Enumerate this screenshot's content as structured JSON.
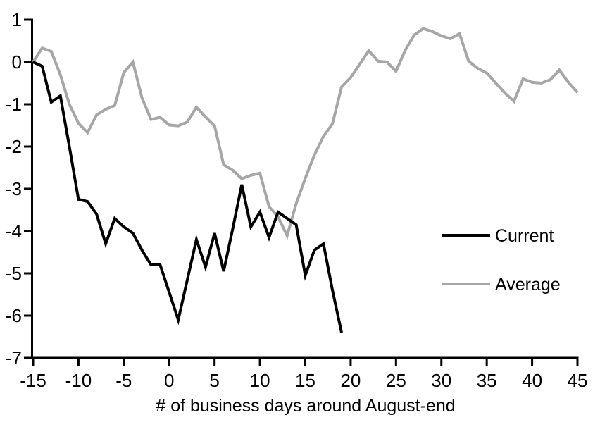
{
  "chart_data": {
    "type": "line",
    "title": "",
    "xlabel": "# of business days around August-end",
    "ylabel": "",
    "xlim": [
      -15,
      45
    ],
    "ylim": [
      -7,
      1
    ],
    "grid": false,
    "x_ticks": [
      -15,
      -10,
      -5,
      0,
      5,
      10,
      15,
      20,
      25,
      30,
      35,
      40,
      45
    ],
    "y_ticks": [
      1,
      0,
      -1,
      -2,
      -3,
      -4,
      -5,
      -6,
      -7
    ],
    "legend_position": "middle-right",
    "axis_color": "#000000",
    "series": [
      {
        "name": "Current",
        "color": "#000000",
        "x": [
          -15,
          -14,
          -13,
          -12,
          -11,
          -10,
          -9,
          -8,
          -7,
          -6,
          -5,
          -4,
          -3,
          -2,
          -1,
          0,
          1,
          2,
          3,
          4,
          5,
          6,
          7,
          8,
          9,
          10,
          11,
          12,
          13,
          14,
          15,
          16,
          17,
          18,
          19
        ],
        "values": [
          0,
          -0.1,
          -0.95,
          -0.8,
          -2.0,
          -3.25,
          -3.3,
          -3.6,
          -4.3,
          -3.7,
          -3.9,
          -4.05,
          -4.45,
          -4.8,
          -4.8,
          -5.45,
          -6.1,
          -5.15,
          -4.2,
          -4.85,
          -4.05,
          -4.95,
          -3.95,
          -2.9,
          -3.9,
          -3.55,
          -4.15,
          -3.55,
          -3.7,
          -3.85,
          -5.05,
          -4.45,
          -4.3,
          -5.4,
          -6.4
        ]
      },
      {
        "name": "Average",
        "color": "#a6a6a6",
        "x": [
          -15,
          -14,
          -13,
          -12,
          -11,
          -10,
          -9,
          -8,
          -7,
          -6,
          -5,
          -4,
          -3,
          -2,
          -1,
          0,
          1,
          2,
          3,
          4,
          5,
          6,
          7,
          8,
          9,
          10,
          11,
          12,
          13,
          14,
          15,
          16,
          17,
          18,
          19,
          20,
          21,
          22,
          23,
          24,
          25,
          26,
          27,
          28,
          29,
          30,
          31,
          32,
          33,
          34,
          35,
          36,
          37,
          38,
          39,
          40,
          41,
          42,
          43,
          44,
          45
        ],
        "values": [
          0,
          0.33,
          0.25,
          -0.3,
          -1.0,
          -1.45,
          -1.67,
          -1.25,
          -1.12,
          -1.03,
          -0.25,
          0.0,
          -0.85,
          -1.36,
          -1.31,
          -1.49,
          -1.51,
          -1.42,
          -1.07,
          -1.3,
          -1.51,
          -2.43,
          -2.56,
          -2.76,
          -2.68,
          -2.63,
          -3.42,
          -3.66,
          -4.11,
          -3.35,
          -2.75,
          -2.2,
          -1.76,
          -1.46,
          -0.59,
          -0.37,
          -0.05,
          0.27,
          0.02,
          0.0,
          -0.22,
          0.27,
          0.64,
          0.79,
          0.72,
          0.62,
          0.55,
          0.67,
          0.02,
          -0.15,
          -0.26,
          -0.5,
          -0.73,
          -0.93,
          -0.4,
          -0.48,
          -0.5,
          -0.42,
          -0.19,
          -0.48,
          -0.72
        ]
      }
    ]
  }
}
